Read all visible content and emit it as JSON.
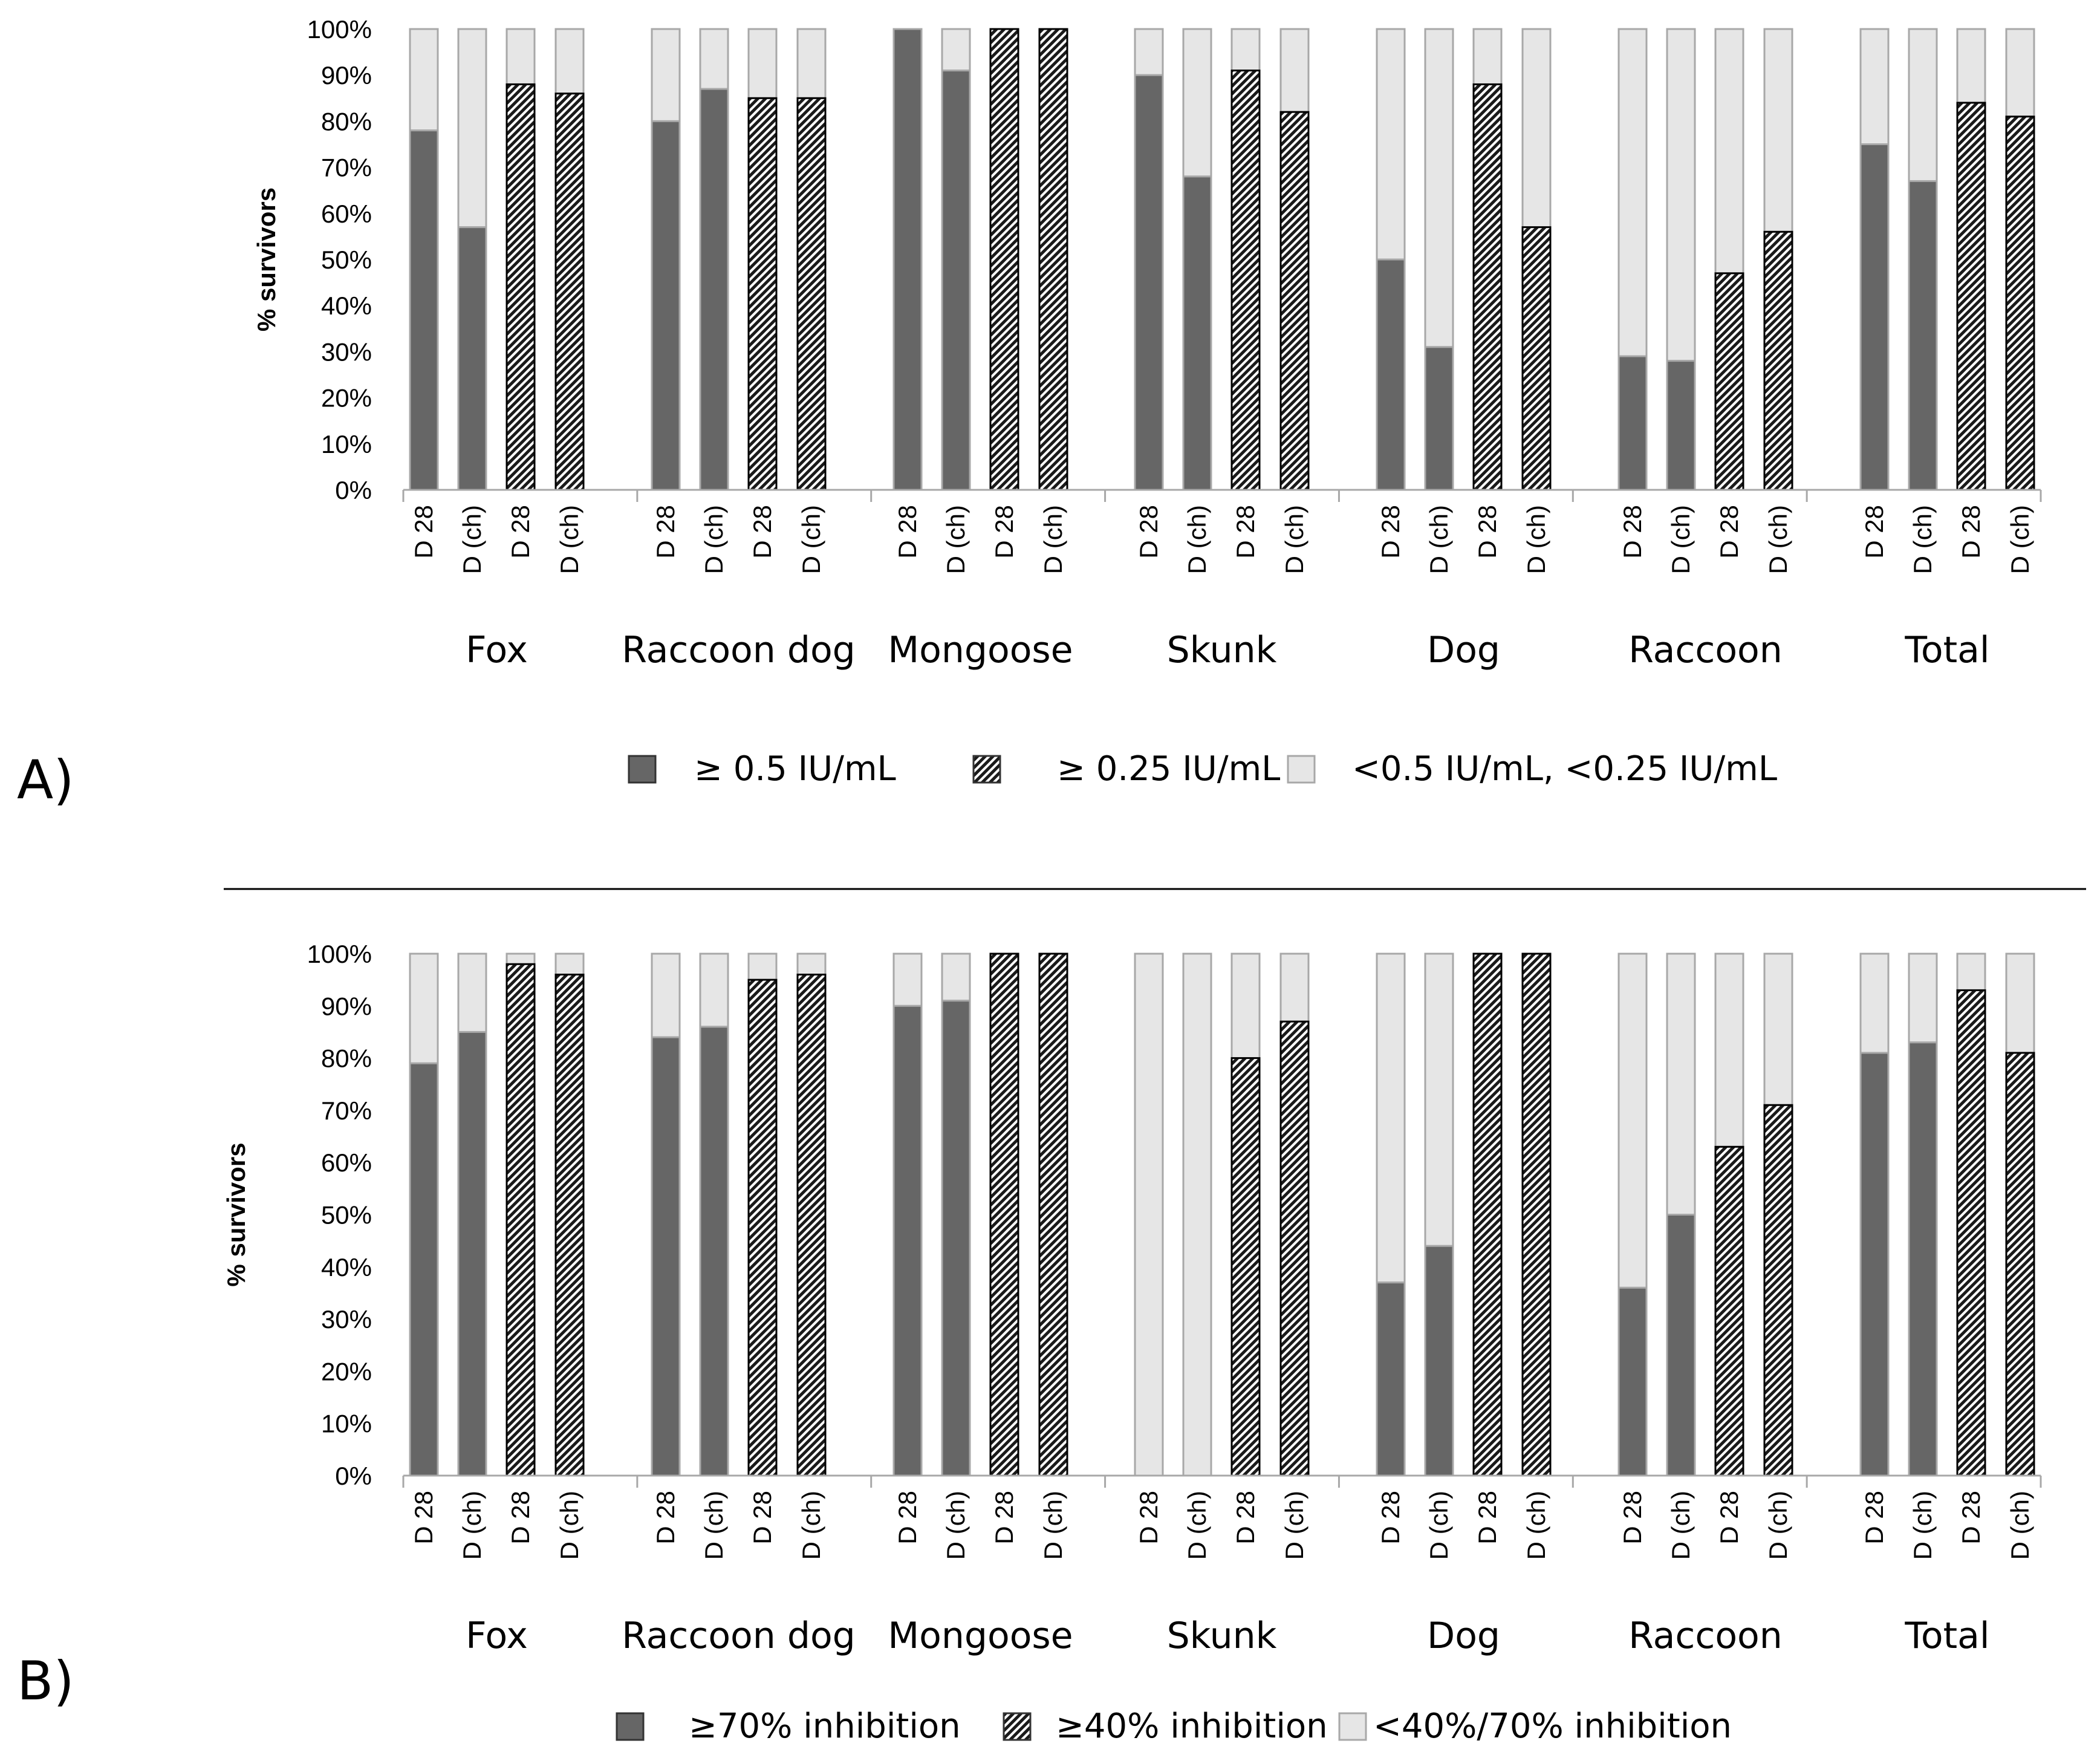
{
  "colors": {
    "dark": "#666666",
    "light": "#e6e6e6",
    "border": "#000000",
    "lightBorder": "#a8a8a8",
    "axis": "#a8a8a8",
    "hatchBg": "#ffffff",
    "hatchFg": "#1a1a1a"
  },
  "chart_data": [
    {
      "panel_label": "A)",
      "type": "bar",
      "stacked": true,
      "ylabel": "% survivors",
      "ylim": [
        0,
        100
      ],
      "yticks": [
        "0%",
        "10%",
        "20%",
        "30%",
        "40%",
        "50%",
        "60%",
        "70%",
        "80%",
        "90%",
        "100%"
      ],
      "groups": [
        "Fox",
        "Raccoon dog",
        "Mongoose",
        "Skunk",
        "Dog",
        "Raccoon",
        "Total"
      ],
      "bar_labels": [
        "D 28",
        "D (ch)",
        "D 28",
        "D (ch)"
      ],
      "bar_styles": [
        "dark",
        "dark",
        "hatched",
        "hatched"
      ],
      "values": [
        [
          78,
          57,
          88,
          86
        ],
        [
          80,
          87,
          85,
          85
        ],
        [
          100,
          91,
          100,
          100
        ],
        [
          90,
          68,
          91,
          82
        ],
        [
          50,
          31,
          88,
          57
        ],
        [
          29,
          28,
          47,
          56
        ],
        [
          75,
          67,
          84,
          81
        ]
      ],
      "legend": [
        {
          "label": "≥ 0.5 IU/mL",
          "style": "dark"
        },
        {
          "label": "≥ 0.25 IU/mL",
          "style": "hatched"
        },
        {
          "label": "<0.5 IU/mL, <0.25 IU/mL",
          "style": "light"
        }
      ]
    },
    {
      "panel_label": "B)",
      "type": "bar",
      "stacked": true,
      "ylabel": "% survivors",
      "ylim": [
        0,
        100
      ],
      "yticks": [
        "0%",
        "10%",
        "20%",
        "30%",
        "40%",
        "50%",
        "60%",
        "70%",
        "80%",
        "90%",
        "100%"
      ],
      "groups": [
        "Fox",
        "Raccoon dog",
        "Mongoose",
        "Skunk",
        "Dog",
        "Raccoon",
        "Total"
      ],
      "bar_labels": [
        "D 28",
        "D (ch)",
        "D 28",
        "D (ch)"
      ],
      "bar_styles": [
        "dark",
        "dark",
        "hatched",
        "hatched"
      ],
      "values": [
        [
          79,
          85,
          98,
          96
        ],
        [
          84,
          86,
          95,
          96
        ],
        [
          90,
          91,
          100,
          100
        ],
        [
          0,
          0,
          80,
          87
        ],
        [
          37,
          44,
          100,
          100
        ],
        [
          36,
          50,
          63,
          71
        ],
        [
          81,
          83,
          93,
          81
        ]
      ],
      "legend": [
        {
          "label": "≥70% inhibition",
          "style": "dark"
        },
        {
          "label": "≥40% inhibition",
          "style": "hatched"
        },
        {
          "label": "<40%/70% inhibition",
          "style": "light"
        }
      ]
    }
  ]
}
